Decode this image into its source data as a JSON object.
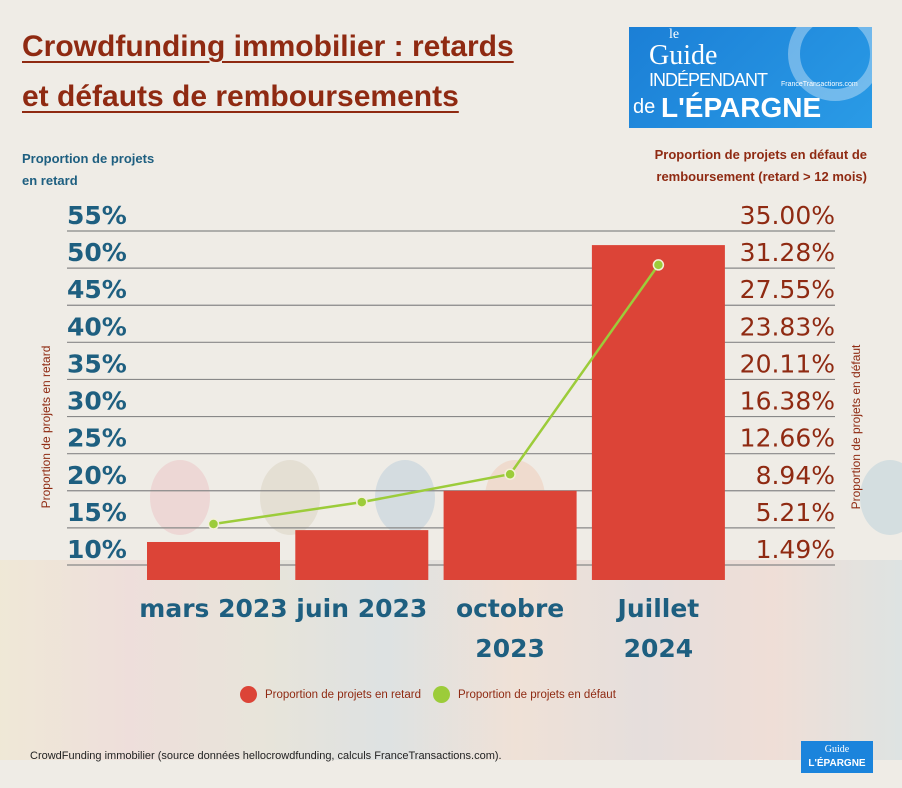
{
  "title_lines": [
    "Crowdfunding immobilier : retards ",
    "et défauts de remboursements"
  ],
  "logo": {
    "line1": "le",
    "line2": "Guide",
    "line3": "INDÉPENDANT",
    "line4": "de",
    "line5": "L'ÉPARGNE",
    "line6": "FranceTransactions.com"
  },
  "left_axis_title": "Proportion de projets en retard",
  "right_axis_title": "Proportion de projets en défaut de remboursement (retard > 12 mois)",
  "left_vertical_label": "Proportion de projets en retard",
  "right_vertical_label": "Proportion de projets en défaut",
  "footer": "CrowdFunding immobilier (source données hellocrowdfunding, calculs FranceTransactions.com).",
  "colors": {
    "bar": "#dc4437",
    "line": "#9ccc3a",
    "left_axis": "#1e5f80",
    "right_axis": "#8f2a12"
  },
  "chart_data": {
    "type": "bar+line",
    "categories": [
      "mars 2023",
      "juin 2023",
      "octobre 2023",
      "Juillet 2024"
    ],
    "series": [
      {
        "name": "Proportion de projets en retard",
        "type": "bar",
        "axis": "left",
        "values": [
          13.1,
          14.7,
          20.0,
          53.1
        ]
      },
      {
        "name": "Proportion de projets en défaut",
        "type": "line",
        "axis": "right",
        "values": [
          5.6,
          7.8,
          10.6,
          31.6
        ]
      }
    ],
    "left_ticks": [
      "10%",
      "15%",
      "20%",
      "25%",
      "30%",
      "35%",
      "40%",
      "45%",
      "50%",
      "55%"
    ],
    "left_range": [
      10,
      55
    ],
    "right_ticks": [
      "1.49%",
      "5.21%",
      "8.94%",
      "12.66%",
      "16.38%",
      "20.11%",
      "23.83%",
      "27.55%",
      "31.28%",
      "35.00%"
    ],
    "right_range": [
      1.49,
      35.0
    ],
    "grid": true,
    "legend_position": "bottom"
  }
}
